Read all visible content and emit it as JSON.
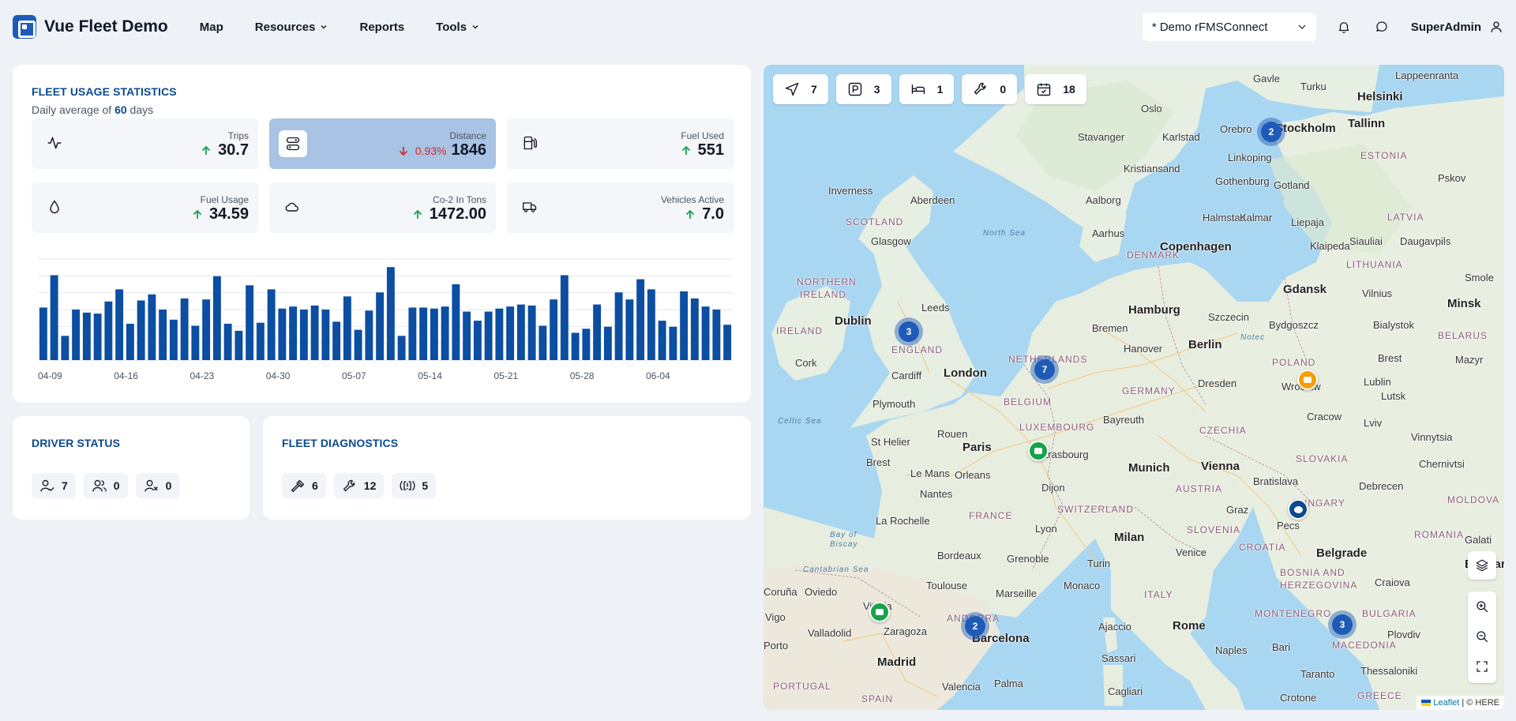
{
  "header": {
    "brand": "Vue Fleet Demo",
    "nav": [
      {
        "label": "Map",
        "has_menu": false
      },
      {
        "label": "Resources",
        "has_menu": true
      },
      {
        "label": "Reports",
        "has_menu": false
      },
      {
        "label": "Tools",
        "has_menu": true
      }
    ],
    "org_select": "* Demo rFMSConnect",
    "user": "SuperAdmin"
  },
  "stats": {
    "title": "FLEET USAGE STATISTICS",
    "subtitle_prefix": "Daily average of",
    "days": "60",
    "subtitle_suffix": "days",
    "tiles": [
      {
        "label": "Trips",
        "value": "30.7",
        "trend": "up",
        "icon": "activity-icon"
      },
      {
        "label": "Distance",
        "value": "1846",
        "pct": "0.93%",
        "trend": "down",
        "icon": "route-icon",
        "active": true
      },
      {
        "label": "Fuel Used",
        "value": "551",
        "trend": "up",
        "icon": "fuel-pump-icon"
      },
      {
        "label": "Fuel Usage",
        "value": "34.59",
        "trend": "up",
        "icon": "droplet-icon"
      },
      {
        "label": "Co-2 In Tons",
        "value": "1472.00",
        "trend": "up",
        "icon": "cloud-icon"
      },
      {
        "label": "Vehicles Active",
        "value": "7.0",
        "trend": "up",
        "icon": "truck-icon"
      }
    ]
  },
  "chart_data": {
    "type": "bar",
    "series_metric": "Distance",
    "tick_labels": [
      "04-09",
      "04-16",
      "04-23",
      "04-30",
      "05-07",
      "05-14",
      "05-21",
      "05-28",
      "06-04"
    ],
    "values": [
      52,
      84,
      24,
      50,
      47,
      46,
      58,
      70,
      36,
      59,
      65,
      50,
      40,
      61,
      34,
      60,
      83,
      36,
      29,
      74,
      37,
      70,
      51,
      53,
      50,
      54,
      50,
      38,
      63,
      30,
      49,
      67,
      92,
      24,
      52,
      52,
      51,
      53,
      75,
      48,
      39,
      48,
      51,
      53,
      55,
      54,
      34,
      60,
      84,
      27,
      31,
      55,
      33,
      67,
      60,
      80,
      70,
      39,
      33,
      68,
      61,
      53,
      50,
      35
    ],
    "ylim": [
      0,
      100
    ],
    "grid": true,
    "color": "#0b4ea2"
  },
  "driver_status": {
    "title": "DRIVER STATUS",
    "chips": [
      {
        "icon": "driver-check-icon",
        "count": "7"
      },
      {
        "icon": "drivers-group-icon",
        "count": "0"
      },
      {
        "icon": "driver-x-icon",
        "count": "0"
      }
    ]
  },
  "diagnostics": {
    "title": "FLEET DIAGNOSTICS",
    "chips": [
      {
        "icon": "hammer-icon",
        "count": "6"
      },
      {
        "icon": "wrench-icon",
        "count": "12"
      },
      {
        "icon": "warning-brake-icon",
        "count": "5"
      }
    ]
  },
  "map": {
    "counters": [
      {
        "icon": "navigation-icon",
        "count": "7"
      },
      {
        "icon": "parking-icon",
        "count": "3"
      },
      {
        "icon": "bed-icon",
        "count": "1"
      },
      {
        "icon": "wrench-icon",
        "count": "0"
      },
      {
        "icon": "calendar-icon",
        "count": "18"
      }
    ],
    "clusters": [
      "2",
      "3",
      "7",
      "2",
      "3"
    ],
    "attribution_leaflet": "Leaflet",
    "attribution_rest": "| © HERE",
    "labels": {
      "gavle": "Gavle",
      "turku": "Turku",
      "lappeenranta": "Lappeenranta",
      "helsinki": "Helsinki",
      "oslo": "Oslo",
      "orebro": "Orebro",
      "stockholm": "Stockholm",
      "tallinn": "Tallinn",
      "karlstad": "Karlstad",
      "stavanger": "Stavanger",
      "linkoping": "Linkoping",
      "estonia": "ESTONIA",
      "pskov": "Pskov",
      "kristiansand": "Kristiansand",
      "gothenburg": "Gothenburg",
      "gotland": "Gotland",
      "inverness": "Inverness",
      "aberdeen": "Aberdeen",
      "aalborg": "Aalborg",
      "halmstad": "Halmstad",
      "kalmar": "Kalmar",
      "liepaja": "Liepaja",
      "latvia": "LATVIA",
      "scotland": "SCOTLAND",
      "glasgow": "Glasgow",
      "northsea": "North Sea",
      "aarhus": "Aarhus",
      "siauliai": "Siauliai",
      "daugavpils": "Daugavpils",
      "copenhagen": "Copenhagen",
      "klaipeda": "Klaipeda",
      "denmark": "DENMARK",
      "lithuania": "LITHUANIA",
      "northernireland1": "NORTHERN",
      "northernireland2": "IRELAND",
      "hamburg": "Hamburg",
      "gdansk": "Gdansk",
      "szczecin": "Szczecin",
      "vilnius": "Vilnius",
      "smole": "Smole",
      "leeds": "Leeds",
      "dublin": "Dublin",
      "bremen": "Bremen",
      "bydgoszcz": "Bydgoszcz",
      "bialystok": "Bialystok",
      "minsk": "Minsk",
      "ireland": "IRELAND",
      "england": "ENGLAND",
      "hanover": "Hanover",
      "berlin": "Berlin",
      "notec": "Notec",
      "belarus": "BELARUS",
      "cork": "Cork",
      "netherlands": "NETHERLANDS",
      "poland": "POLAND",
      "brest": "Brest",
      "mazyr": "Mazyr",
      "cardiff": "Cardiff",
      "london": "London",
      "wroclaw": "Wroclaw",
      "dresden": "Dresden",
      "lublin": "Lublin",
      "plymouth": "Plymouth",
      "belgium": "BELGIUM",
      "germany": "GERMANY",
      "lutsk": "Lutsk",
      "luxembourg": "LUXEMBOURG",
      "bayreuth": "Bayreuth",
      "cracow": "Cracow",
      "lviv": "Lviv",
      "celticsea": "Celtic Sea",
      "czechia": "CZECHIA",
      "sthelier": "St Helier",
      "rouen": "Rouen",
      "vinnytsia": "Vinnytsia",
      "paris": "Paris",
      "strasbourg": "Strasbourg",
      "slovakia": "SLOVAKIA",
      "chernivtsi": "Chernivtsi",
      "brest2": "Brest",
      "vienna": "Vienna",
      "munich": "Munich",
      "lemans": "Le Mans",
      "orleans": "Orleans",
      "bratislava": "Bratislava",
      "nantes": "Nantes",
      "dijon": "Dijon",
      "austria": "AUSTRIA",
      "debrecen": "Debrecen",
      "hungary": "HUNGARY",
      "moldova": "MOLDOVA",
      "larochelle": "La Rochelle",
      "switzerland": "SWITZERLAND",
      "france": "FRANCE",
      "graz": "Graz",
      "lyon": "Lyon",
      "milan": "Milan",
      "slovenia": "SLOVENIA",
      "pecs": "Pecs",
      "romania": "ROMANIA",
      "bayofbiscay1": "Bay of",
      "bayofbiscay2": "Biscay",
      "venice": "Venice",
      "croatia": "CROATIA",
      "galati": "Galati",
      "bordeaux": "Bordeaux",
      "grenoble": "Grenoble",
      "turin": "Turin",
      "belgrade": "Belgrade",
      "cantabrian": "Cantabrian Sea",
      "bucharest": "Buchare",
      "oviedo": "Oviedo",
      "coruna": "Coruña",
      "toulouse": "Toulouse",
      "marseille": "Marseille",
      "craiova": "Craiova",
      "monaco": "Monaco",
      "bosnia1": "BOSNIA AND",
      "bosnia2": "HERZEGOVINA",
      "italy": "ITALY",
      "vitoria": "Vitoria",
      "vigo": "Vigo",
      "andorra": "ANDORRA",
      "bulgaria": "BULGARIA",
      "montenegro": "MONTENEGRO",
      "valladolid": "Valladolid",
      "zaragoza": "Zaragoza",
      "barcelona": "Barcelona",
      "ajaccio": "Ajaccio",
      "rome": "Rome",
      "plovdiv": "Plovdiv",
      "porto": "Porto",
      "macedonia": "MACEDONIA",
      "naples": "Naples",
      "bari": "Bari",
      "madrid": "Madrid",
      "sassari": "Sassari",
      "thessaloniki": "Thessaloniki",
      "taranto": "Taranto",
      "portugal": "PORTUGAL",
      "valencia": "Valencia",
      "palma": "Palma",
      "cagliari": "Cagliari",
      "spain": "SPAIN",
      "crotone": "Crotone",
      "greece": "GREECE"
    }
  }
}
